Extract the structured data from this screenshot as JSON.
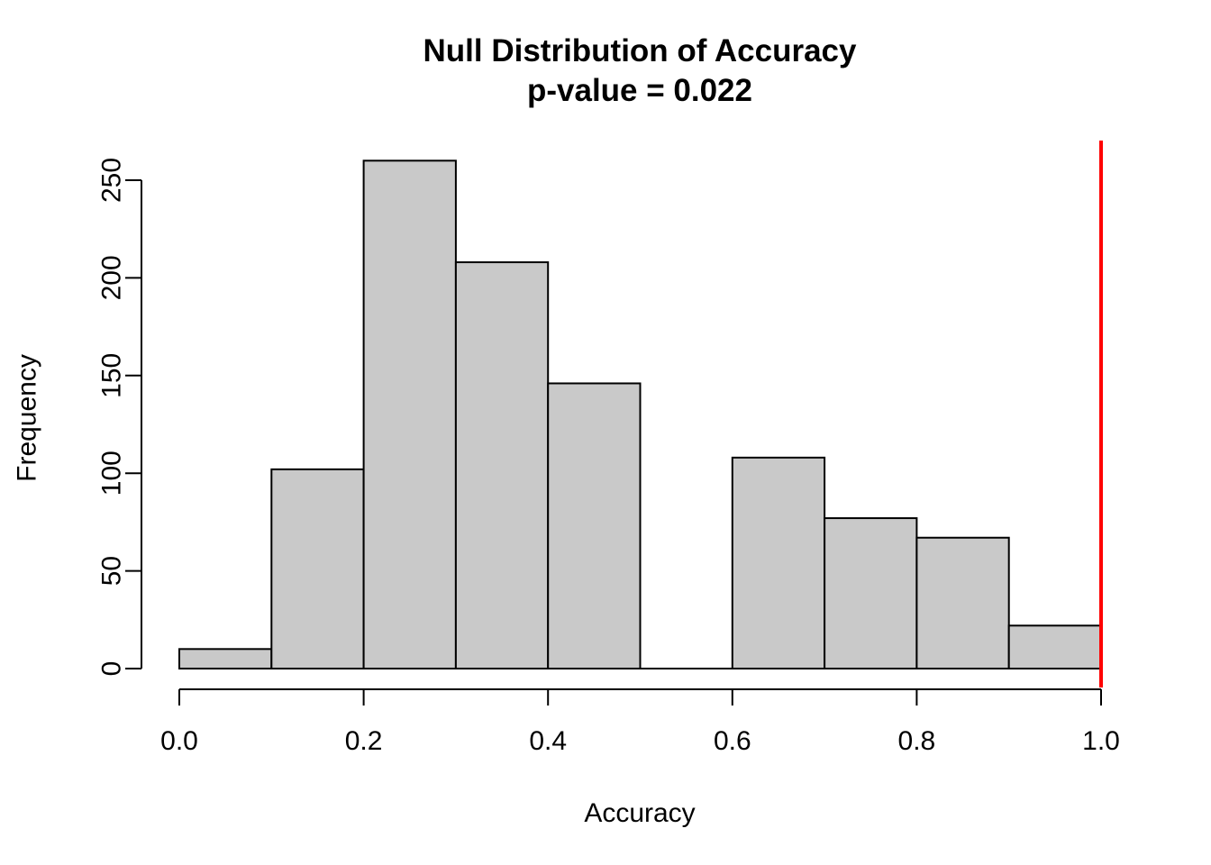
{
  "chart_data": {
    "type": "bar",
    "chart_kind": "histogram",
    "title": "Null Distribution of Accuracy",
    "subtitle": "p-value = 0.022",
    "xlabel": "Accuracy",
    "ylabel": "Frequency",
    "bin_edges": [
      0.0,
      0.1,
      0.2,
      0.3,
      0.4,
      0.5,
      0.6,
      0.7,
      0.8,
      0.9,
      1.0
    ],
    "counts": [
      10,
      102,
      260,
      208,
      146,
      0,
      108,
      77,
      67,
      22
    ],
    "xlim": [
      0.0,
      1.0
    ],
    "ylim": [
      0,
      250
    ],
    "x_ticks": [
      {
        "v": 0.0,
        "label": "0.0"
      },
      {
        "v": 0.2,
        "label": "0.2"
      },
      {
        "v": 0.4,
        "label": "0.4"
      },
      {
        "v": 0.6,
        "label": "0.6"
      },
      {
        "v": 0.8,
        "label": "0.8"
      },
      {
        "v": 1.0,
        "label": "1.0"
      }
    ],
    "y_ticks": [
      {
        "v": 0,
        "label": "0"
      },
      {
        "v": 50,
        "label": "50"
      },
      {
        "v": 100,
        "label": "100"
      },
      {
        "v": 150,
        "label": "150"
      },
      {
        "v": 200,
        "label": "200"
      },
      {
        "v": 250,
        "label": "250"
      }
    ],
    "vline": {
      "x": 1.0,
      "color": "#ff0000",
      "stroke_width": 4
    },
    "grid": false,
    "legend": "none",
    "colors": {
      "bar_fill": "#c9c9c9",
      "bar_stroke": "#000000",
      "axis": "#000000",
      "text": "#000000",
      "background": "#ffffff"
    }
  }
}
